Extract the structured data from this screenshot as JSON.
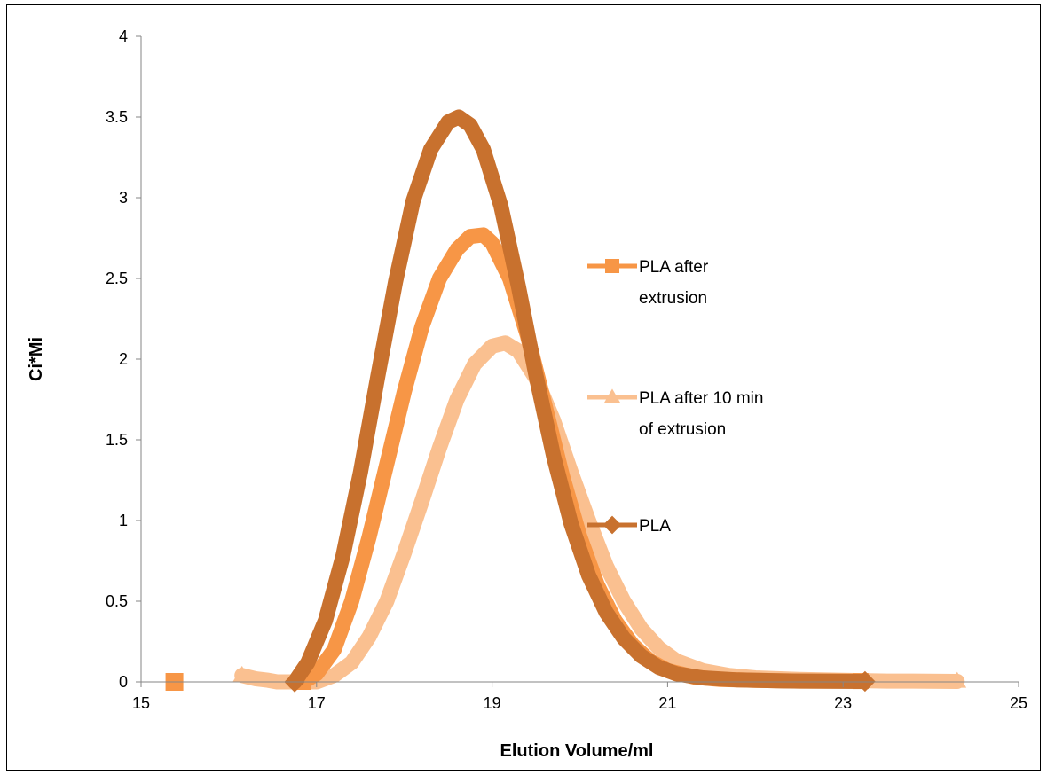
{
  "chart_data": {
    "type": "line",
    "title": "",
    "xlabel": "Elution  Volume/ml",
    "ylabel": "Ci*Mi",
    "xlim": [
      15,
      25
    ],
    "ylim": [
      0,
      4
    ],
    "x_ticks": [
      "15",
      "17",
      "19",
      "21",
      "23",
      "25"
    ],
    "y_ticks": [
      "0",
      "0.5",
      "1",
      "1.5",
      "2",
      "2.5",
      "3",
      "3.5",
      "4"
    ],
    "grid": false,
    "legend_position": "right",
    "series": [
      {
        "name": "PLA after extrusion",
        "marker": "square",
        "color": "#f79646",
        "points": [
          [
            15.38,
            0.0
          ],
          [
            16.85,
            0.0
          ],
          [
            17.0,
            0.05
          ],
          [
            17.2,
            0.2
          ],
          [
            17.4,
            0.5
          ],
          [
            17.6,
            0.9
          ],
          [
            17.8,
            1.35
          ],
          [
            18.0,
            1.8
          ],
          [
            18.2,
            2.2
          ],
          [
            18.4,
            2.5
          ],
          [
            18.6,
            2.68
          ],
          [
            18.75,
            2.76
          ],
          [
            18.9,
            2.77
          ],
          [
            19.0,
            2.72
          ],
          [
            19.2,
            2.5
          ],
          [
            19.4,
            2.15
          ],
          [
            19.6,
            1.72
          ],
          [
            19.8,
            1.28
          ],
          [
            20.0,
            0.9
          ],
          [
            20.2,
            0.6
          ],
          [
            20.4,
            0.38
          ],
          [
            20.6,
            0.23
          ],
          [
            20.8,
            0.13
          ],
          [
            21.0,
            0.07
          ],
          [
            21.3,
            0.03
          ],
          [
            21.6,
            0.015
          ],
          [
            22.0,
            0.01
          ],
          [
            22.5,
            0.005
          ],
          [
            23.0,
            0.005
          ],
          [
            23.2,
            0.005
          ]
        ]
      },
      {
        "name": "PLA after 10 min of extrusion",
        "marker": "triangle",
        "color": "#fac090",
        "points": [
          [
            16.15,
            0.04
          ],
          [
            16.3,
            0.02
          ],
          [
            16.45,
            0.01
          ],
          [
            16.55,
            0.0
          ],
          [
            17.0,
            0.0
          ],
          [
            17.2,
            0.04
          ],
          [
            17.4,
            0.12
          ],
          [
            17.6,
            0.28
          ],
          [
            17.8,
            0.5
          ],
          [
            18.0,
            0.8
          ],
          [
            18.2,
            1.12
          ],
          [
            18.4,
            1.45
          ],
          [
            18.6,
            1.75
          ],
          [
            18.8,
            1.97
          ],
          [
            19.0,
            2.08
          ],
          [
            19.15,
            2.1
          ],
          [
            19.3,
            2.05
          ],
          [
            19.5,
            1.88
          ],
          [
            19.7,
            1.62
          ],
          [
            19.9,
            1.3
          ],
          [
            20.1,
            1.0
          ],
          [
            20.3,
            0.72
          ],
          [
            20.5,
            0.5
          ],
          [
            20.7,
            0.33
          ],
          [
            20.9,
            0.21
          ],
          [
            21.1,
            0.13
          ],
          [
            21.4,
            0.07
          ],
          [
            21.7,
            0.04
          ],
          [
            22.0,
            0.025
          ],
          [
            22.5,
            0.015
          ],
          [
            23.0,
            0.01
          ],
          [
            23.5,
            0.005
          ],
          [
            23.8,
            0.005
          ],
          [
            24.3,
            0.003
          ]
        ]
      },
      {
        "name": "PLA",
        "marker": "diamond",
        "color": "#c8712e",
        "points": [
          [
            16.75,
            0.0
          ],
          [
            16.9,
            0.12
          ],
          [
            17.1,
            0.38
          ],
          [
            17.3,
            0.78
          ],
          [
            17.5,
            1.3
          ],
          [
            17.7,
            1.9
          ],
          [
            17.9,
            2.48
          ],
          [
            18.1,
            2.98
          ],
          [
            18.3,
            3.3
          ],
          [
            18.5,
            3.47
          ],
          [
            18.62,
            3.5
          ],
          [
            18.75,
            3.45
          ],
          [
            18.9,
            3.3
          ],
          [
            19.1,
            2.95
          ],
          [
            19.3,
            2.45
          ],
          [
            19.5,
            1.9
          ],
          [
            19.7,
            1.4
          ],
          [
            19.9,
            0.98
          ],
          [
            20.1,
            0.66
          ],
          [
            20.3,
            0.43
          ],
          [
            20.5,
            0.27
          ],
          [
            20.7,
            0.16
          ],
          [
            20.9,
            0.09
          ],
          [
            21.1,
            0.05
          ],
          [
            21.4,
            0.025
          ],
          [
            21.8,
            0.012
          ],
          [
            22.3,
            0.006
          ],
          [
            22.8,
            0.004
          ],
          [
            23.25,
            0.003
          ]
        ]
      }
    ]
  }
}
